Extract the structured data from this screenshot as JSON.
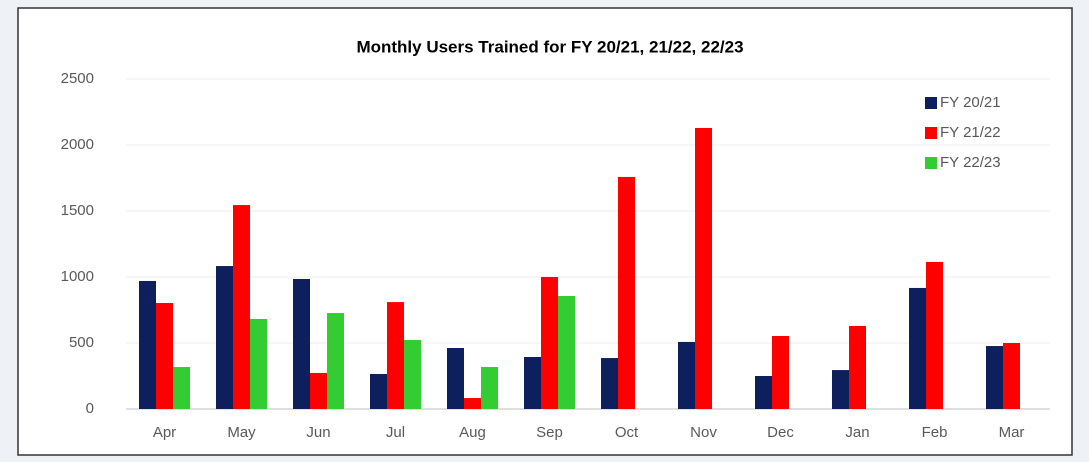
{
  "chart_data": {
    "type": "bar",
    "title": "Monthly Users Trained for FY 20/21, 21/22, 22/23",
    "categories": [
      "Apr",
      "May",
      "Jun",
      "Jul",
      "Aug",
      "Sep",
      "Oct",
      "Nov",
      "Dec",
      "Jan",
      "Feb",
      "Mar"
    ],
    "series": [
      {
        "name": "FY 20/21",
        "color": "#0d1f5c",
        "values": [
          970,
          1083,
          985,
          265,
          462,
          394,
          386,
          508,
          250,
          295,
          917,
          477
        ]
      },
      {
        "name": "FY 21/22",
        "color": "#ff0000",
        "values": [
          803,
          1545,
          273,
          810,
          83,
          1000,
          1758,
          2129,
          553,
          629,
          1114,
          500
        ]
      },
      {
        "name": "FY 22/23",
        "color": "#33cc33",
        "values": [
          318,
          682,
          727,
          523,
          318,
          856,
          null,
          null,
          null,
          null,
          null,
          null
        ]
      }
    ],
    "ylim": [
      0,
      2500
    ],
    "yticks": [
      0,
      500,
      1000,
      1500,
      2000,
      2500
    ],
    "grid": true,
    "legend": "top-right"
  }
}
